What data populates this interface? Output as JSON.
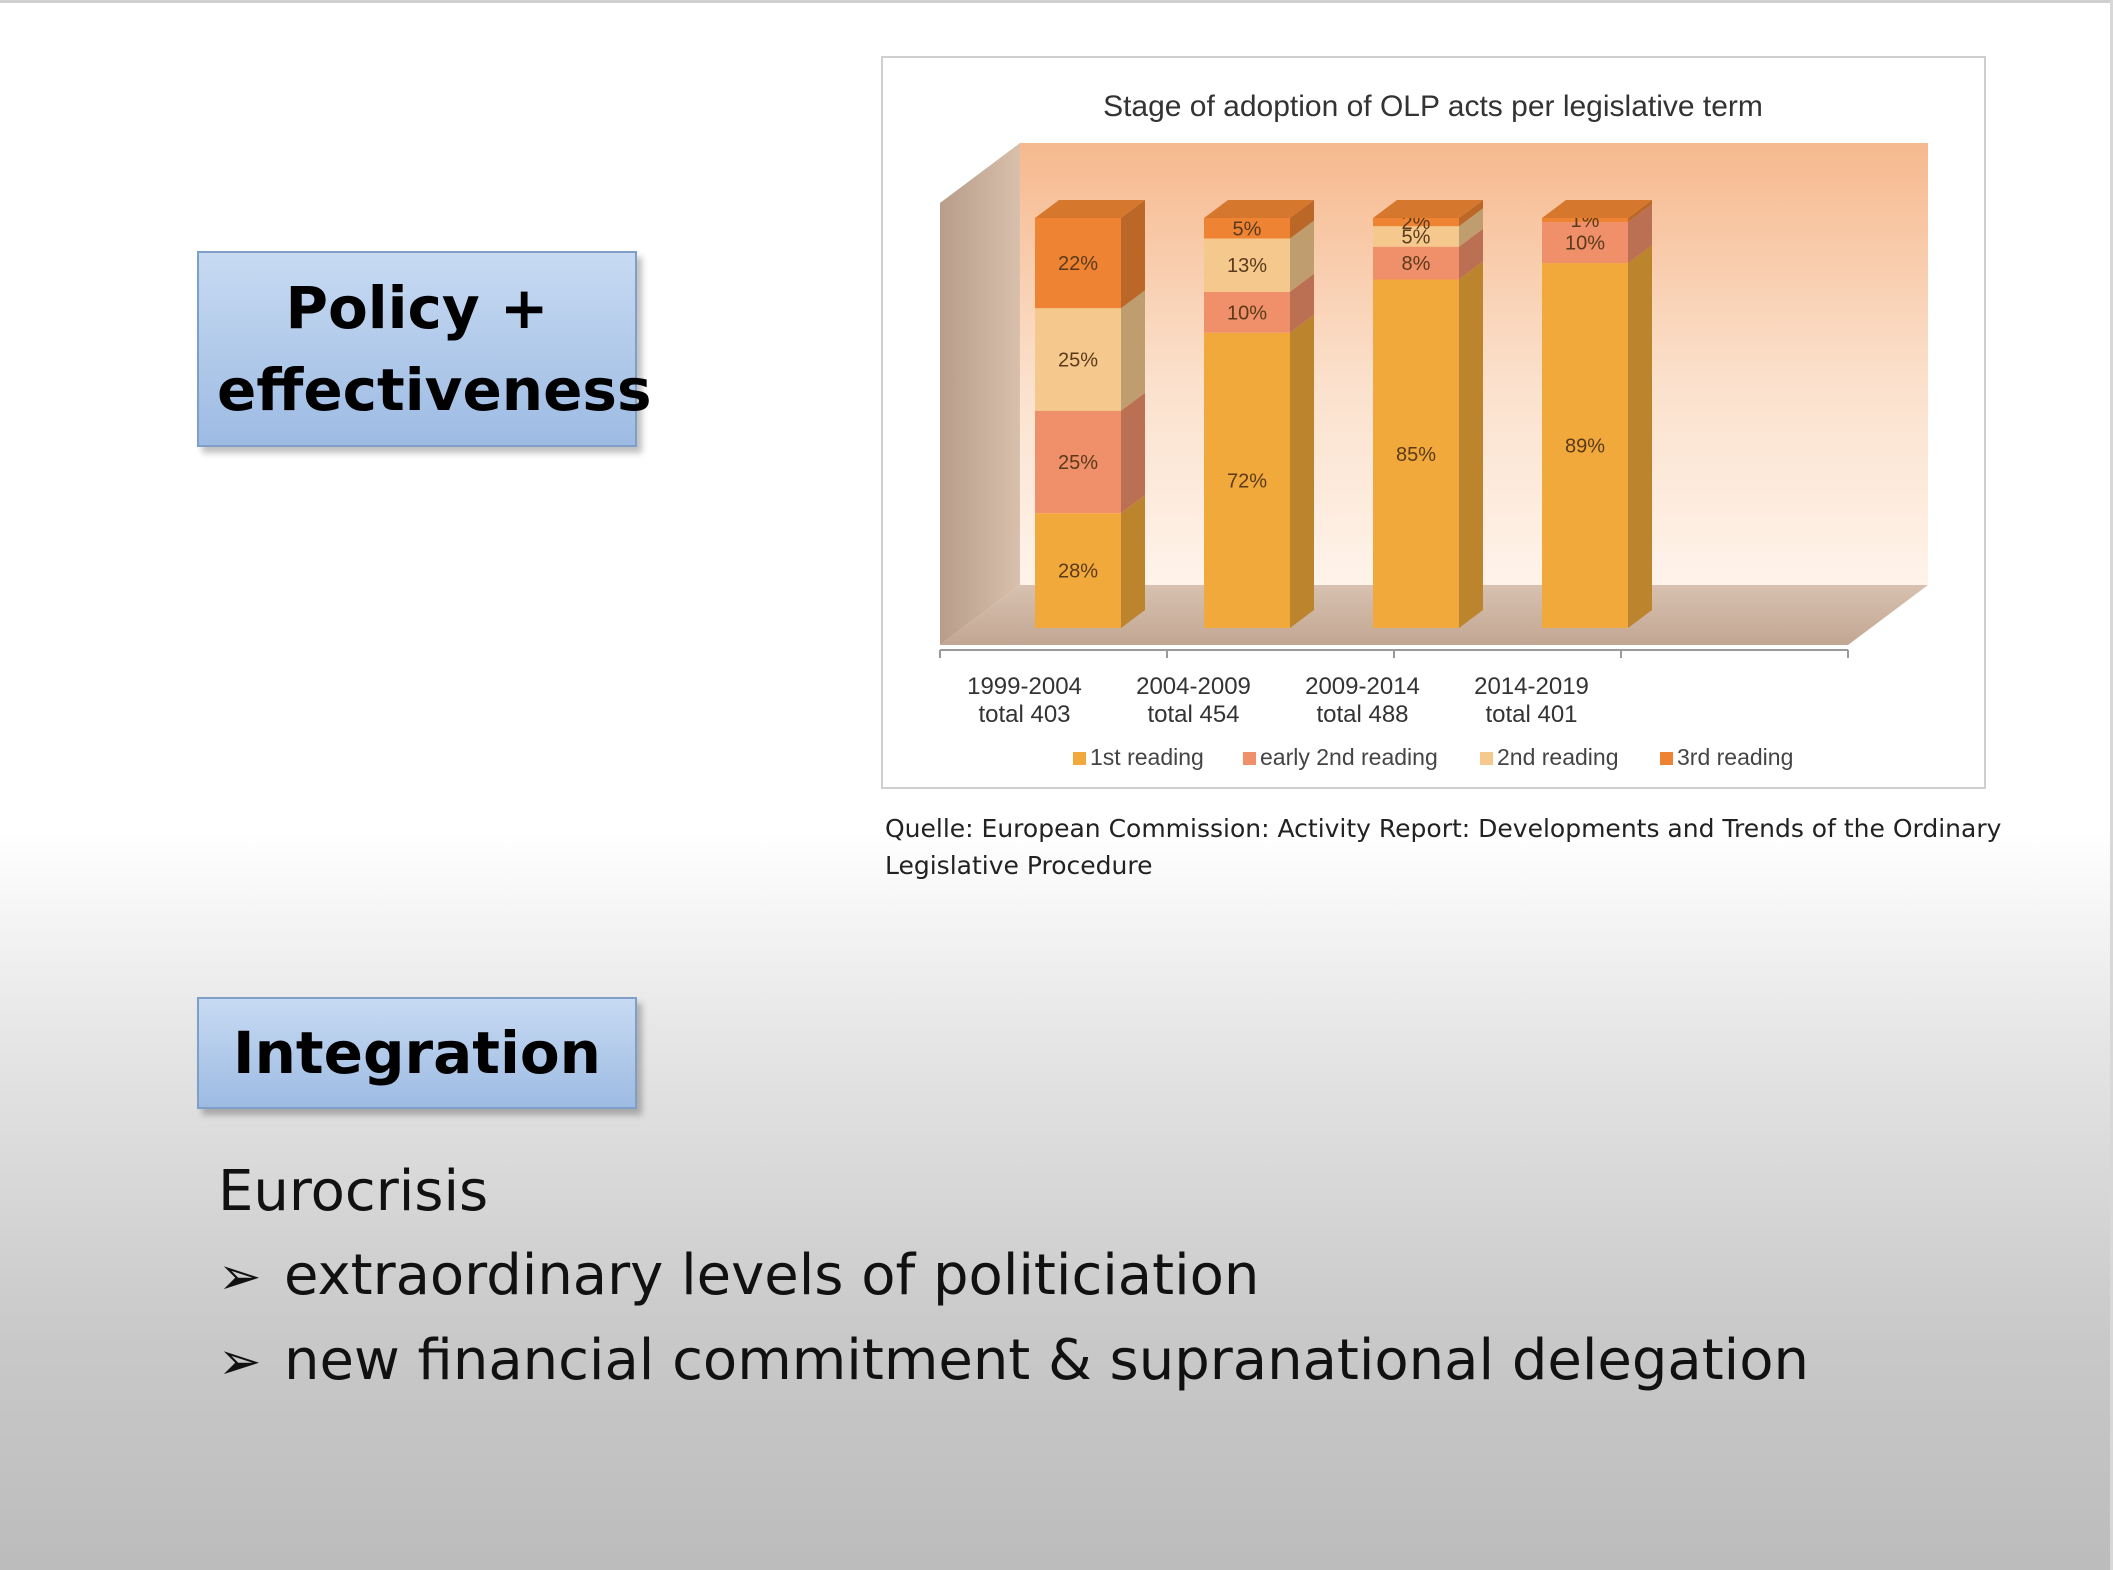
{
  "labels": {
    "policy": "Policy + effectiveness",
    "integration": "Integration"
  },
  "chart_data": {
    "type": "bar",
    "stacked": true,
    "title": "Stage of adoption of OLP acts per legislative term",
    "categories": [
      "1999-2004",
      "2004-2009",
      "2009-2014",
      "2014-2019"
    ],
    "category_totals": [
      "total 403",
      "total 454",
      "total 488",
      "total 401"
    ],
    "series": [
      {
        "name": "1st reading",
        "values": [
          28,
          72,
          85,
          89
        ],
        "labels": [
          "28%",
          "72%",
          "85%",
          "89%"
        ],
        "color": "#f2a93b"
      },
      {
        "name": "early 2nd reading",
        "values": [
          25,
          10,
          8,
          10
        ],
        "labels": [
          "25%",
          "10%",
          "8%",
          "10%"
        ],
        "color": "#f0906a"
      },
      {
        "name": "2nd reading",
        "values": [
          25,
          13,
          5,
          0
        ],
        "labels": [
          "25%",
          "13%",
          "5%",
          ""
        ],
        "color": "#f5c98d"
      },
      {
        "name": "3rd reading",
        "values": [
          22,
          5,
          2,
          1
        ],
        "labels": [
          "22%",
          "5%",
          "2%",
          "1%"
        ],
        "color": "#ee8433"
      }
    ],
    "ylim": [
      0,
      100
    ],
    "legend": "bottom",
    "grid": false
  },
  "source": "Quelle: European Commission: Activity Report: Developments and Trends of the Ordinary Legislative Procedure",
  "bottom": {
    "heading": "Eurocrisis",
    "bullets": [
      "extraordinary levels of politiciation",
      "new financial commitment & supranational delegation"
    ]
  }
}
